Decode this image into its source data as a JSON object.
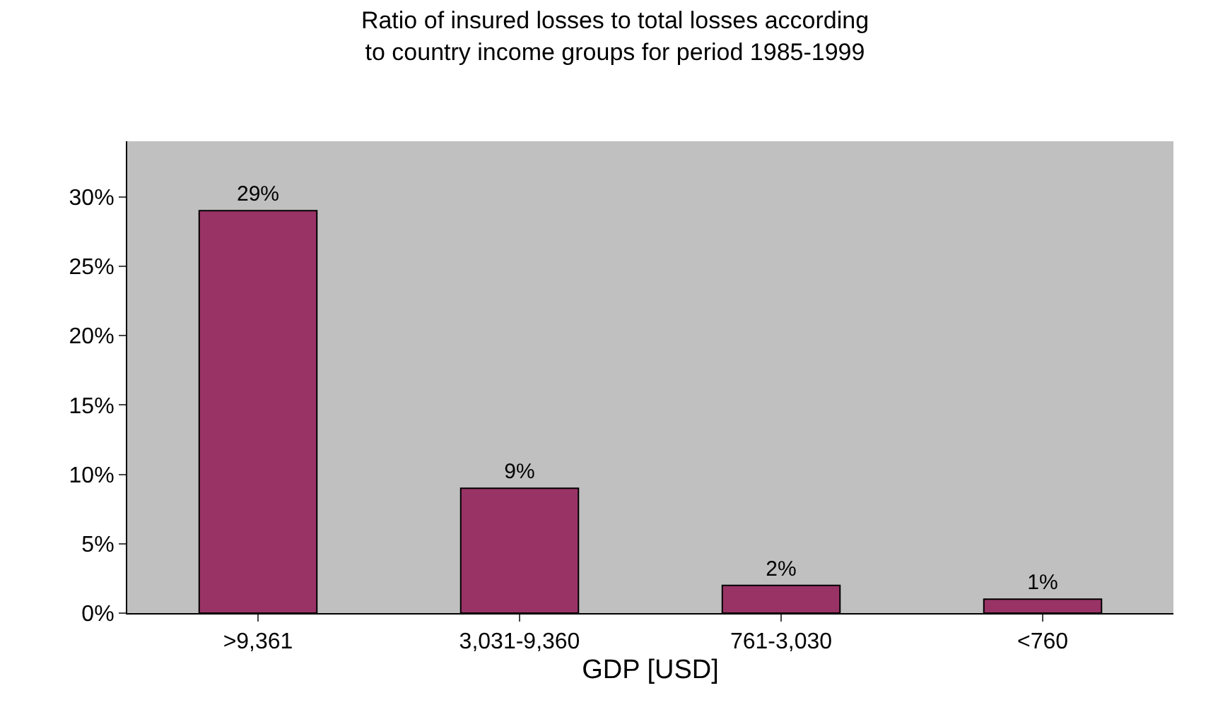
{
  "chart_data": {
    "type": "bar",
    "title": "Ratio of insured losses to total losses according\nto country income groups for period 1985-1999",
    "xlabel": "GDP [USD]",
    "categories": [
      ">9,361",
      "3,031-9,360",
      "761-3,030",
      "<760"
    ],
    "values": [
      29,
      9,
      2,
      1
    ],
    "value_labels": [
      "29%",
      "9%",
      "2%",
      "1%"
    ],
    "color": "#993366",
    "ylim": [
      0,
      34
    ],
    "yticks": [
      {
        "value": 0,
        "label": "0%"
      },
      {
        "value": 5,
        "label": "5%"
      },
      {
        "value": 10,
        "label": "10%"
      },
      {
        "value": 15,
        "label": "15%"
      },
      {
        "value": 20,
        "label": "20%"
      },
      {
        "value": 25,
        "label": "25%"
      },
      {
        "value": 30,
        "label": "30%"
      }
    ],
    "grid": false
  }
}
